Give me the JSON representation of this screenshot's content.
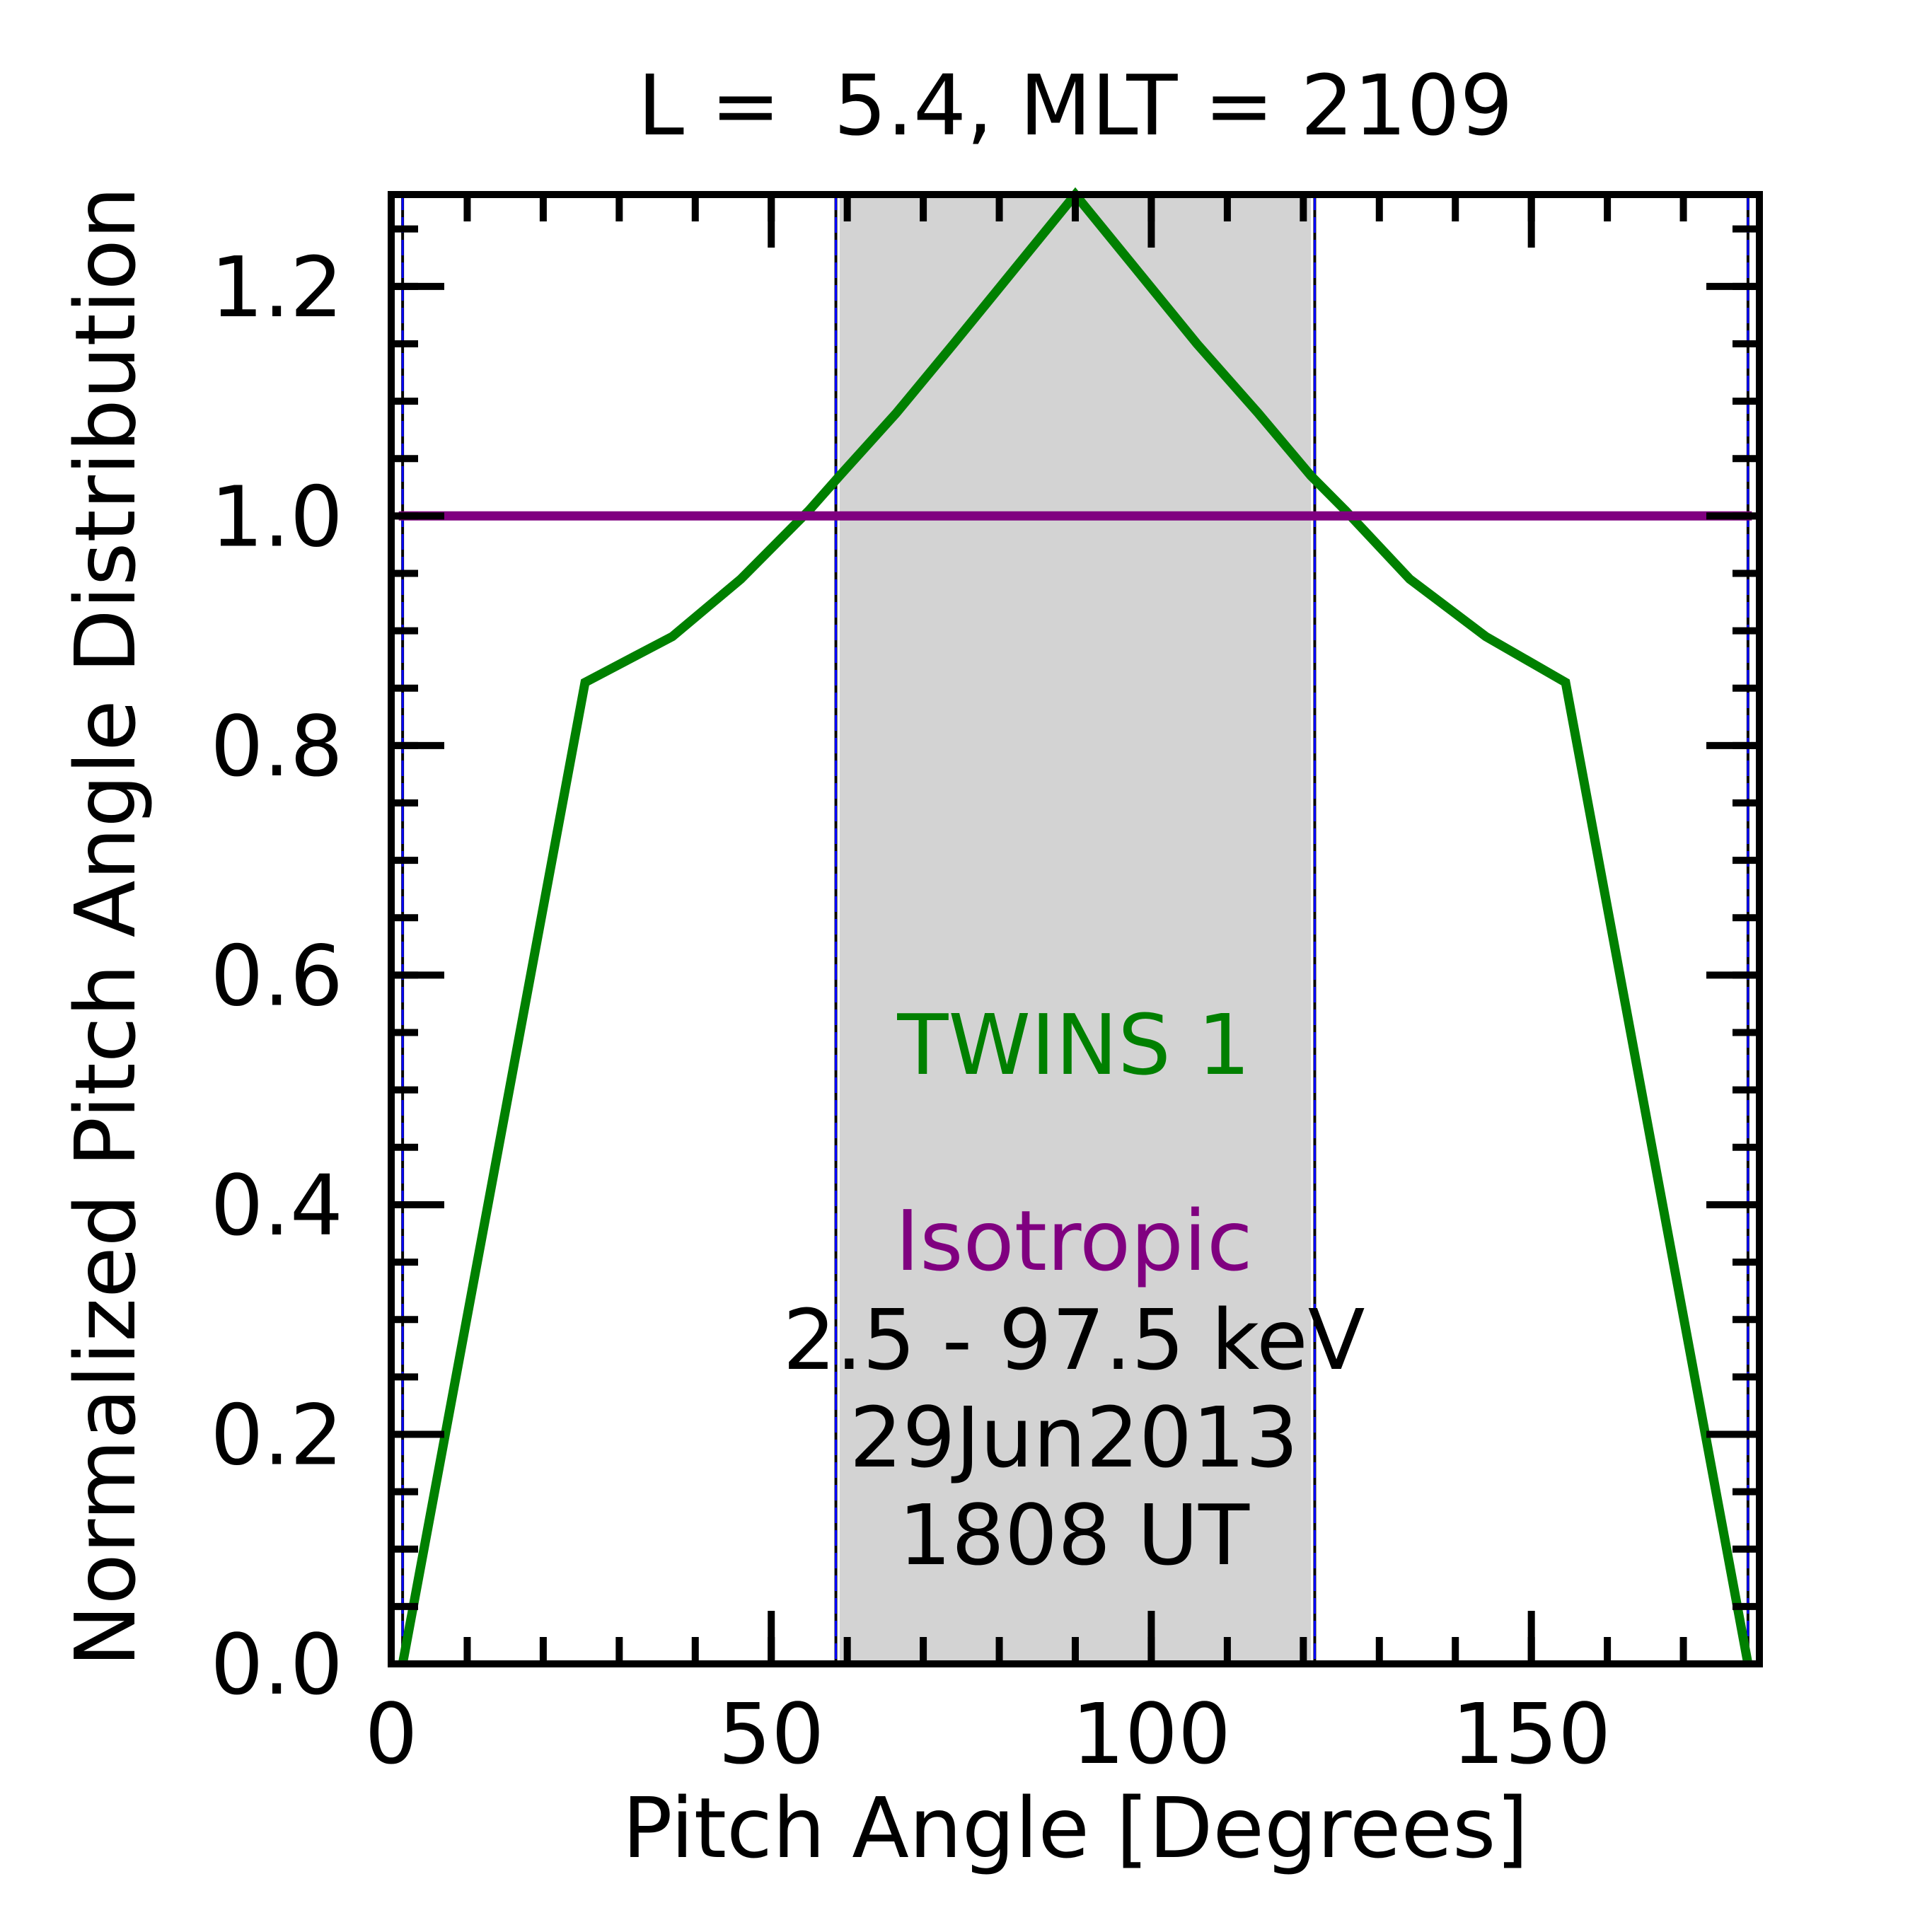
{
  "chart_data": {
    "type": "line",
    "title": "L =  5.4, MLT = 2109",
    "xlabel": "Pitch Angle [Degrees]",
    "ylabel": "Normalized Pitch Angle Distribution",
    "xlim": [
      0,
      180
    ],
    "ylim": [
      0,
      1.28
    ],
    "xticks": [
      0,
      50,
      100,
      150
    ],
    "xtick_labels": [
      "0",
      "50",
      "100",
      "150"
    ],
    "yticks": [
      0.0,
      0.2,
      0.4,
      0.6,
      0.8,
      1.0,
      1.2
    ],
    "ytick_labels": [
      "0.0",
      "0.2",
      "0.4",
      "0.6",
      "0.8",
      "1.0",
      "1.2"
    ],
    "x_minor_step": 10,
    "y_minor_step": 0.05,
    "grid": false,
    "shaded_region": {
      "x": [
        59,
        121
      ],
      "color": "#d3d3d3"
    },
    "vertical_lines": [
      1.5,
      58.5,
      121.5,
      178.5
    ],
    "series": [
      {
        "name": "TWINS 1",
        "color": "#008000",
        "x": [
          1.5,
          25.5,
          37,
          46,
          55,
          59,
          66.5,
          74,
          82,
          90,
          98,
          106,
          114,
          121,
          125.5,
          134,
          144,
          154.5,
          178.5
        ],
        "y": [
          0.0,
          0.855,
          0.895,
          0.945,
          1.005,
          1.035,
          1.09,
          1.15,
          1.215,
          1.28,
          1.215,
          1.15,
          1.09,
          1.035,
          1.005,
          0.945,
          0.895,
          0.855,
          0.0
        ]
      },
      {
        "name": "Isotropic",
        "color": "#800080",
        "x": [
          1,
          179
        ],
        "y": [
          1.0,
          1.0
        ]
      }
    ],
    "annotations": {
      "series1_label": "TWINS 1",
      "series2_label": "Isotropic",
      "energy": "2.5 - 97.5 keV",
      "date": "29Jun2013",
      "time": "1808 UT"
    }
  }
}
